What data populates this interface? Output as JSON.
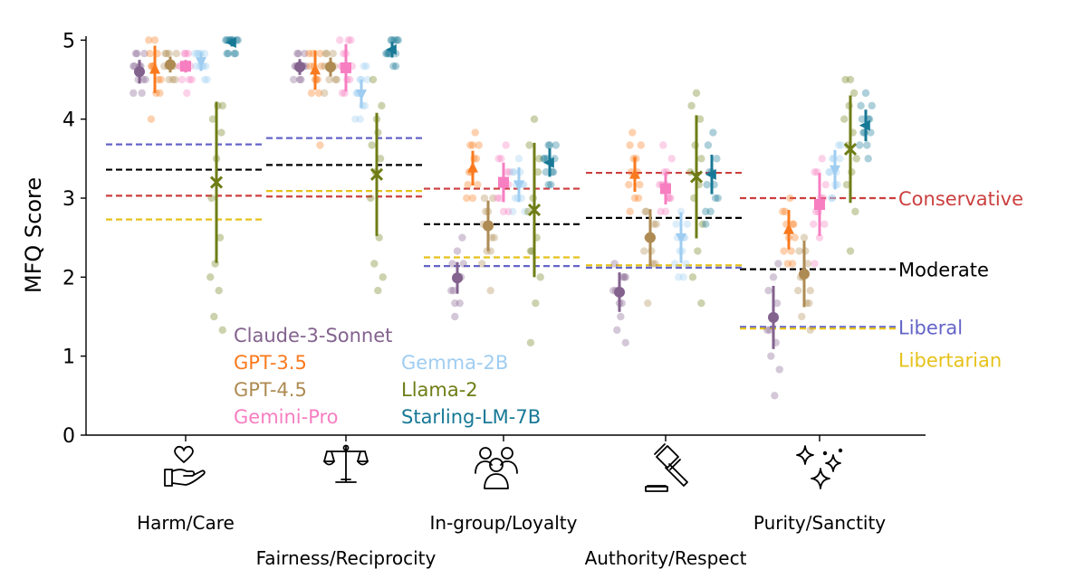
{
  "chart_data": {
    "type": "scatter",
    "subtype": "strip-plot-with-mean-and-error-bars",
    "ylabel": "MFQ Score",
    "ylim": [
      0,
      5.05
    ],
    "yticks": [
      0,
      1,
      2,
      3,
      4,
      5
    ],
    "grid": false,
    "legend": "inside-lower-left-two-columns",
    "categories": [
      "Harm/Care",
      "Fairness/Reciprocity",
      "In-group/Loyalty",
      "Authority/Respect",
      "Purity/Sanctity"
    ],
    "category_icons": [
      "heart-in-hand-icon",
      "balance-scale-icon",
      "group-of-people-icon",
      "gavel-icon",
      "sparkles-icon"
    ],
    "series": [
      {
        "name": "Claude-3-Sonnet",
        "color": "#83628e",
        "marker": "circle",
        "means": [
          4.6,
          4.66,
          1.99,
          1.81,
          1.49
        ],
        "err": [
          0.15,
          0.1,
          0.2,
          0.25,
          0.4
        ],
        "points": [
          [
            4.33,
            4.5,
            4.5,
            4.67,
            4.67,
            4.83,
            4.83,
            4.67,
            4.5,
            4.83,
            4.33,
            4.67
          ],
          [
            4.67,
            4.5,
            4.83,
            4.67,
            4.67,
            4.5,
            4.83,
            4.67,
            4.5,
            4.67,
            4.83,
            4.67
          ],
          [
            1.5,
            1.67,
            1.83,
            2.0,
            2.0,
            2.17,
            2.33,
            2.5,
            1.83,
            2.0,
            2.17,
            1.67
          ],
          [
            1.17,
            1.33,
            1.67,
            1.83,
            1.83,
            2.0,
            2.17,
            1.67,
            2.0,
            1.83,
            1.5,
            2.0
          ],
          [
            0.5,
            0.83,
            1.0,
            1.17,
            1.33,
            1.5,
            1.67,
            1.83,
            2.0,
            2.17,
            1.33,
            1.5
          ]
        ]
      },
      {
        "name": "GPT-3.5",
        "color": "#f97a1e",
        "marker": "triangle-up",
        "means": [
          4.63,
          4.62,
          3.38,
          3.3,
          2.6
        ],
        "err": [
          0.3,
          0.25,
          0.22,
          0.22,
          0.25
        ],
        "points": [
          [
            4.0,
            4.33,
            4.5,
            4.67,
            4.83,
            5.0,
            4.67,
            4.5,
            4.83,
            5.0,
            4.33,
            4.67
          ],
          [
            3.67,
            4.33,
            4.5,
            4.67,
            4.83,
            4.5,
            4.83,
            4.67,
            4.33,
            4.67,
            4.5,
            4.83
          ],
          [
            3.0,
            3.17,
            3.33,
            3.5,
            3.67,
            3.67,
            3.83,
            3.0,
            3.33,
            3.5,
            3.17,
            3.67
          ],
          [
            2.83,
            3.0,
            3.17,
            3.33,
            3.5,
            3.67,
            3.83,
            3.33,
            3.17,
            3.5,
            3.0,
            3.67
          ],
          [
            2.17,
            2.33,
            2.5,
            2.67,
            2.83,
            3.0,
            2.5,
            2.67,
            2.33,
            2.83,
            2.17,
            2.67
          ]
        ]
      },
      {
        "name": "GPT-4.5",
        "color": "#ae8b53",
        "marker": "circle",
        "means": [
          4.69,
          4.66,
          2.65,
          2.5,
          2.04
        ],
        "err": [
          0.1,
          0.12,
          0.32,
          0.36,
          0.42
        ],
        "points": [
          [
            4.5,
            4.67,
            4.83,
            4.67,
            4.5,
            4.83,
            4.67,
            4.83,
            4.67,
            4.5,
            4.67,
            4.83
          ],
          [
            4.33,
            4.5,
            4.67,
            4.83,
            4.67,
            4.5,
            4.83,
            4.67,
            4.5,
            4.67,
            4.83,
            4.67
          ],
          [
            1.83,
            2.17,
            2.33,
            2.5,
            2.67,
            2.83,
            3.0,
            3.0,
            2.67,
            2.5,
            2.83,
            2.33
          ],
          [
            1.67,
            2.17,
            2.33,
            2.5,
            2.67,
            2.83,
            2.5,
            2.17,
            2.83,
            2.33,
            2.67,
            2.5
          ],
          [
            1.33,
            1.5,
            1.67,
            1.83,
            2.0,
            2.17,
            2.33,
            2.5,
            1.67,
            2.0,
            2.33,
            1.83
          ]
        ]
      },
      {
        "name": "Gemini-Pro",
        "color": "#f77ec1",
        "marker": "square",
        "means": [
          4.67,
          4.65,
          3.2,
          3.12,
          2.92
        ],
        "err": [
          0.08,
          0.3,
          0.25,
          0.2,
          0.4
        ],
        "points": [
          [
            4.33,
            4.5,
            4.67,
            4.83,
            4.67,
            4.83,
            4.5,
            4.67,
            4.83,
            4.67,
            4.5,
            4.67
          ],
          [
            4.33,
            4.5,
            4.67,
            4.83,
            5.0,
            5.0,
            4.33,
            4.5,
            4.67,
            4.83,
            5.0,
            4.67
          ],
          [
            2.83,
            3.0,
            3.17,
            3.33,
            3.5,
            3.67,
            3.0,
            3.17,
            3.33,
            3.5,
            2.83,
            3.17
          ],
          [
            2.83,
            3.0,
            3.17,
            3.33,
            3.5,
            3.67,
            3.0,
            3.17,
            3.33,
            3.0,
            2.83,
            3.17
          ],
          [
            2.17,
            2.5,
            2.67,
            2.83,
            3.0,
            3.17,
            3.33,
            3.5,
            2.67,
            2.83,
            3.0,
            3.33
          ]
        ]
      },
      {
        "name": "Gemma-2B",
        "color": "#9fcdf1",
        "marker": "triangle-down",
        "means": [
          4.73,
          4.32,
          3.17,
          2.5,
          3.36
        ],
        "err": [
          0.12,
          0.18,
          0.22,
          0.32,
          0.25
        ],
        "points": [
          [
            4.5,
            4.67,
            4.83,
            4.67,
            4.83,
            4.67,
            4.5,
            4.83,
            4.67,
            4.83,
            4.67,
            4.83
          ],
          [
            4.0,
            4.17,
            4.33,
            4.5,
            4.67,
            4.33,
            4.17,
            4.5,
            4.33,
            4.67,
            4.0,
            4.5
          ],
          [
            2.83,
            3.0,
            3.17,
            3.33,
            3.5,
            3.17,
            3.0,
            3.33,
            2.83,
            3.17,
            3.0,
            3.33
          ],
          [
            2.0,
            2.17,
            2.33,
            2.5,
            2.67,
            2.83,
            2.17,
            2.5,
            2.33,
            2.67,
            2.0,
            2.5
          ],
          [
            3.0,
            3.17,
            3.33,
            3.5,
            3.67,
            3.33,
            3.17,
            3.5,
            3.0,
            3.33,
            3.67,
            3.5
          ]
        ]
      },
      {
        "name": "Llama-2",
        "color": "#6f7d16",
        "marker": "x",
        "means": [
          3.2,
          3.3,
          2.85,
          3.27,
          3.62
        ],
        "err": [
          1.02,
          0.78,
          0.85,
          0.78,
          0.68
        ],
        "points": [
          [
            1.33,
            1.5,
            1.83,
            2.0,
            2.17,
            2.5,
            3.0,
            3.5,
            3.83,
            4.0,
            4.17,
            4.17
          ],
          [
            1.83,
            2.0,
            2.17,
            2.5,
            3.0,
            3.33,
            3.5,
            3.67,
            4.0,
            4.17,
            4.5,
            3.83
          ],
          [
            1.17,
            1.67,
            2.0,
            2.33,
            2.5,
            2.83,
            3.0,
            3.33,
            3.67,
            4.0,
            3.5,
            2.33
          ],
          [
            1.67,
            2.0,
            2.33,
            2.67,
            3.0,
            3.17,
            3.33,
            3.67,
            4.0,
            4.17,
            4.33,
            3.5
          ],
          [
            2.33,
            2.83,
            3.17,
            3.33,
            3.5,
            3.67,
            3.83,
            4.0,
            4.17,
            4.33,
            4.5,
            4.5
          ]
        ]
      },
      {
        "name": "Starling-LM-7B",
        "color": "#177996",
        "marker": "triangle-left",
        "means": [
          4.97,
          4.88,
          3.45,
          3.3,
          3.92
        ],
        "err": [
          0.05,
          0.1,
          0.18,
          0.25,
          0.2
        ],
        "points": [
          [
            4.83,
            5.0,
            5.0,
            4.83,
            5.0,
            5.0,
            5.0,
            4.83,
            5.0,
            5.0,
            4.83,
            5.0
          ],
          [
            4.67,
            4.83,
            5.0,
            5.0,
            4.83,
            4.67,
            5.0,
            4.83,
            5.0,
            4.83,
            5.0,
            4.83
          ],
          [
            3.17,
            3.33,
            3.5,
            3.67,
            3.5,
            3.33,
            3.17,
            3.67,
            3.5,
            3.33,
            3.5,
            3.67
          ],
          [
            2.67,
            2.83,
            3.0,
            3.17,
            3.33,
            3.5,
            3.67,
            3.83,
            3.0,
            3.33,
            3.17,
            2.83
          ],
          [
            3.5,
            3.67,
            3.83,
            4.0,
            4.17,
            4.33,
            3.83,
            4.0,
            3.67,
            4.17,
            3.83,
            4.0
          ]
        ]
      }
    ],
    "reference_lines": [
      {
        "name": "Conservative",
        "color": "#cc3f3f",
        "values": [
          3.03,
          3.02,
          3.12,
          3.32,
          3.0
        ]
      },
      {
        "name": "Moderate",
        "color": "#000000",
        "values": [
          3.36,
          3.42,
          2.67,
          2.75,
          2.1
        ]
      },
      {
        "name": "Liberal",
        "color": "#6464c8",
        "values": [
          3.68,
          3.76,
          2.14,
          2.12,
          1.37
        ]
      },
      {
        "name": "Libertarian",
        "color": "#e6c21a",
        "values": [
          2.73,
          3.09,
          2.25,
          2.15,
          1.35
        ]
      }
    ]
  }
}
